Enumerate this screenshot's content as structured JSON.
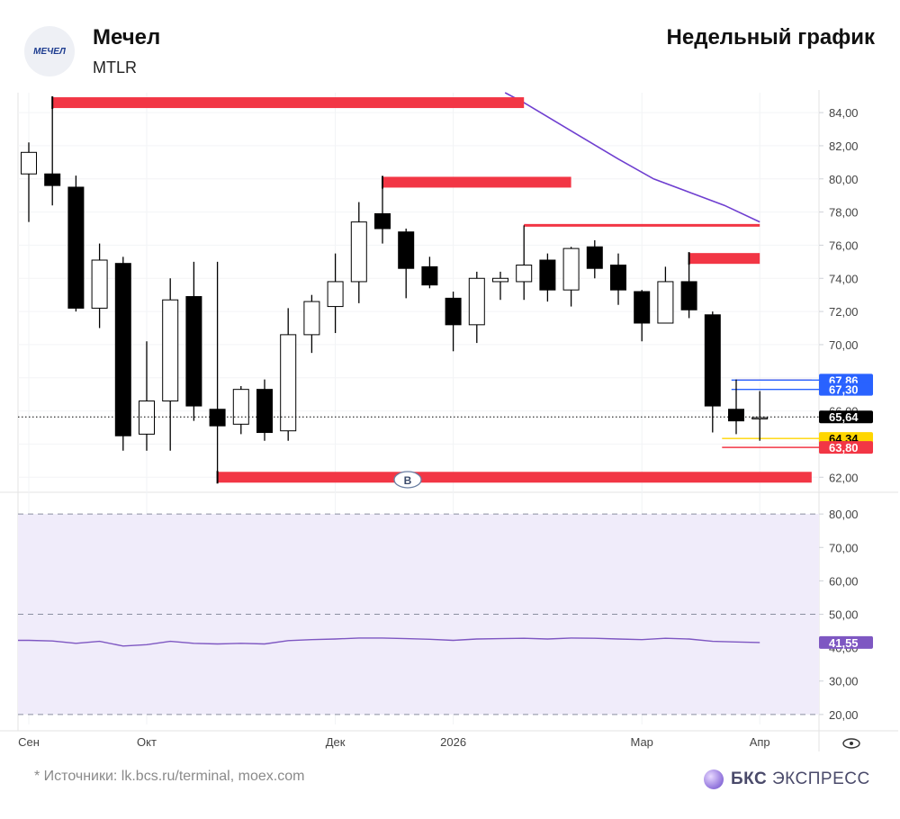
{
  "header": {
    "logo_text": "МЕЧЕЛ",
    "title": "Мечел",
    "ticker": "MTLR",
    "chart_type": "Недельный график"
  },
  "footer": {
    "source": "* Источники: lk.bcs.ru/terminal, moex.com",
    "brand_bold": "БКС",
    "brand_rest": " ЭКСПРЕСС"
  },
  "colors": {
    "bull_fill": "#ffffff",
    "bear_fill": "#000000",
    "level_red": "#f23645",
    "level_blue": "#2962ff",
    "level_yellow": "#ffd600",
    "ma_purple": "#6f3fd0",
    "rsi_band": "#f0ecfa",
    "rsi_line": "#7e57c2"
  },
  "chart_data": {
    "type": "candlestick",
    "x_labels": [
      "Сен",
      "Окт",
      "Дек",
      "2026",
      "Мар",
      "Апр"
    ],
    "x_label_weeks": [
      0,
      5,
      13,
      18,
      26,
      31
    ],
    "y_ticks": [
      "62,00",
      "64,00",
      "66,00",
      "68,00",
      "70,00",
      "72,00",
      "74,00",
      "76,00",
      "78,00",
      "80,00",
      "82,00",
      "84,00"
    ],
    "ylim": [
      61.2,
      85.2
    ],
    "candles": [
      {
        "o": 80.3,
        "h": 82.2,
        "l": 77.4,
        "c": 81.6
      },
      {
        "o": 80.3,
        "h": 84.8,
        "l": 78.4,
        "c": 79.6
      },
      {
        "o": 79.5,
        "h": 80.2,
        "l": 72.0,
        "c": 72.2
      },
      {
        "o": 72.2,
        "h": 76.1,
        "l": 71.0,
        "c": 75.1
      },
      {
        "o": 74.9,
        "h": 75.3,
        "l": 63.6,
        "c": 64.5
      },
      {
        "o": 64.6,
        "h": 70.2,
        "l": 63.6,
        "c": 66.6
      },
      {
        "o": 66.6,
        "h": 74.0,
        "l": 63.6,
        "c": 72.7
      },
      {
        "o": 72.9,
        "h": 75.0,
        "l": 65.4,
        "c": 66.3
      },
      {
        "o": 66.1,
        "h": 75.0,
        "l": 62.0,
        "c": 65.1
      },
      {
        "o": 65.2,
        "h": 67.5,
        "l": 64.6,
        "c": 67.3
      },
      {
        "o": 67.3,
        "h": 67.9,
        "l": 64.2,
        "c": 64.7
      },
      {
        "o": 64.8,
        "h": 72.2,
        "l": 64.2,
        "c": 70.6
      },
      {
        "o": 70.6,
        "h": 73.0,
        "l": 69.5,
        "c": 72.6
      },
      {
        "o": 72.3,
        "h": 75.5,
        "l": 70.7,
        "c": 73.8
      },
      {
        "o": 73.8,
        "h": 78.6,
        "l": 72.5,
        "c": 77.4
      },
      {
        "o": 77.9,
        "h": 80.0,
        "l": 76.1,
        "c": 77.0
      },
      {
        "o": 76.8,
        "h": 77.0,
        "l": 72.8,
        "c": 74.6
      },
      {
        "o": 74.7,
        "h": 75.3,
        "l": 73.4,
        "c": 73.6
      },
      {
        "o": 72.8,
        "h": 73.2,
        "l": 69.6,
        "c": 71.2
      },
      {
        "o": 71.2,
        "h": 74.4,
        "l": 70.1,
        "c": 74.0
      },
      {
        "o": 73.8,
        "h": 74.4,
        "l": 72.7,
        "c": 74.0
      },
      {
        "o": 73.8,
        "h": 77.2,
        "l": 72.7,
        "c": 74.8
      },
      {
        "o": 75.1,
        "h": 75.5,
        "l": 72.6,
        "c": 73.3
      },
      {
        "o": 73.3,
        "h": 75.9,
        "l": 72.3,
        "c": 75.8
      },
      {
        "o": 75.9,
        "h": 76.3,
        "l": 74.0,
        "c": 74.6
      },
      {
        "o": 74.8,
        "h": 75.5,
        "l": 72.4,
        "c": 73.3
      },
      {
        "o": 73.2,
        "h": 73.3,
        "l": 70.2,
        "c": 71.3
      },
      {
        "o": 71.3,
        "h": 74.7,
        "l": 71.3,
        "c": 73.8
      },
      {
        "o": 73.8,
        "h": 75.2,
        "l": 71.6,
        "c": 72.1
      },
      {
        "o": 71.8,
        "h": 72.0,
        "l": 64.7,
        "c": 66.3
      },
      {
        "o": 66.1,
        "h": 67.9,
        "l": 64.6,
        "c": 65.4
      },
      {
        "o": 65.6,
        "h": 67.2,
        "l": 64.2,
        "c": 65.6
      }
    ],
    "levels": [
      {
        "y": 84.6,
        "from": 1,
        "to": 21,
        "color": "#f23645",
        "thick": true
      },
      {
        "y": 79.8,
        "from": 15,
        "to": 23,
        "color": "#f23645",
        "thick": true
      },
      {
        "y": 77.2,
        "from": 21,
        "to": 31,
        "color": "#f23645",
        "thick": false
      },
      {
        "y": 75.2,
        "from": 28,
        "to": 31,
        "color": "#f23645",
        "thick": true
      },
      {
        "y": 62.0,
        "from": 8,
        "to": 33.2,
        "color": "#f23645",
        "thick": true
      },
      {
        "y": 67.86,
        "from": 30,
        "to": 33.2,
        "color": "#f23645",
        "thick": false
      },
      {
        "y": 67.86,
        "from": 29.8,
        "to": 33.7,
        "color": "#2962ff",
        "thick": false
      },
      {
        "y": 67.3,
        "from": 29.8,
        "to": 33.7,
        "color": "#2962ff",
        "thick": false
      },
      {
        "y": 64.34,
        "from": 29.4,
        "to": 33.7,
        "color": "#ffd600",
        "thick": false
      },
      {
        "y": 63.8,
        "from": 29.4,
        "to": 33.7,
        "color": "#f23645",
        "thick": false
      }
    ],
    "ma_line": [
      {
        "x": 20.2,
        "y": 85.2
      },
      {
        "x": 21,
        "y": 84.6
      },
      {
        "x": 23,
        "y": 82.9
      },
      {
        "x": 25,
        "y": 81.2
      },
      {
        "x": 26.5,
        "y": 80.0
      },
      {
        "x": 28,
        "y": 79.2
      },
      {
        "x": 29.5,
        "y": 78.4
      },
      {
        "x": 31,
        "y": 77.4
      }
    ],
    "current_price": 65.64,
    "price_labels": [
      {
        "value": "67,86",
        "y": 67.86,
        "bg": "#2962ff",
        "fg": "#ffffff"
      },
      {
        "value": "67,30",
        "y": 67.3,
        "bg": "#2962ff",
        "fg": "#ffffff"
      },
      {
        "value": "65,64",
        "y": 65.64,
        "bg": "#000000",
        "fg": "#ffffff"
      },
      {
        "value": "64,34",
        "y": 64.34,
        "bg": "#ffd600",
        "fg": "#000000"
      },
      {
        "value": "63,80",
        "y": 63.8,
        "bg": "#f23645",
        "fg": "#ffffff"
      }
    ],
    "marker": "B",
    "rsi": {
      "y_ticks": [
        "20,00",
        "30,00",
        "40,00",
        "50,00",
        "60,00",
        "70,00",
        "80,00"
      ],
      "ylim": [
        17,
        83
      ],
      "band": [
        20,
        80
      ],
      "dashed": [
        20,
        50,
        80
      ],
      "values": [
        42.2,
        42.0,
        41.3,
        41.9,
        40.5,
        40.9,
        41.9,
        41.3,
        41.1,
        41.3,
        41.1,
        42.1,
        42.4,
        42.6,
        42.9,
        42.9,
        42.7,
        42.5,
        42.2,
        42.6,
        42.7,
        42.8,
        42.6,
        42.9,
        42.8,
        42.6,
        42.4,
        42.8,
        42.6,
        41.9,
        41.7,
        41.55
      ],
      "current_label": "41,55"
    }
  }
}
